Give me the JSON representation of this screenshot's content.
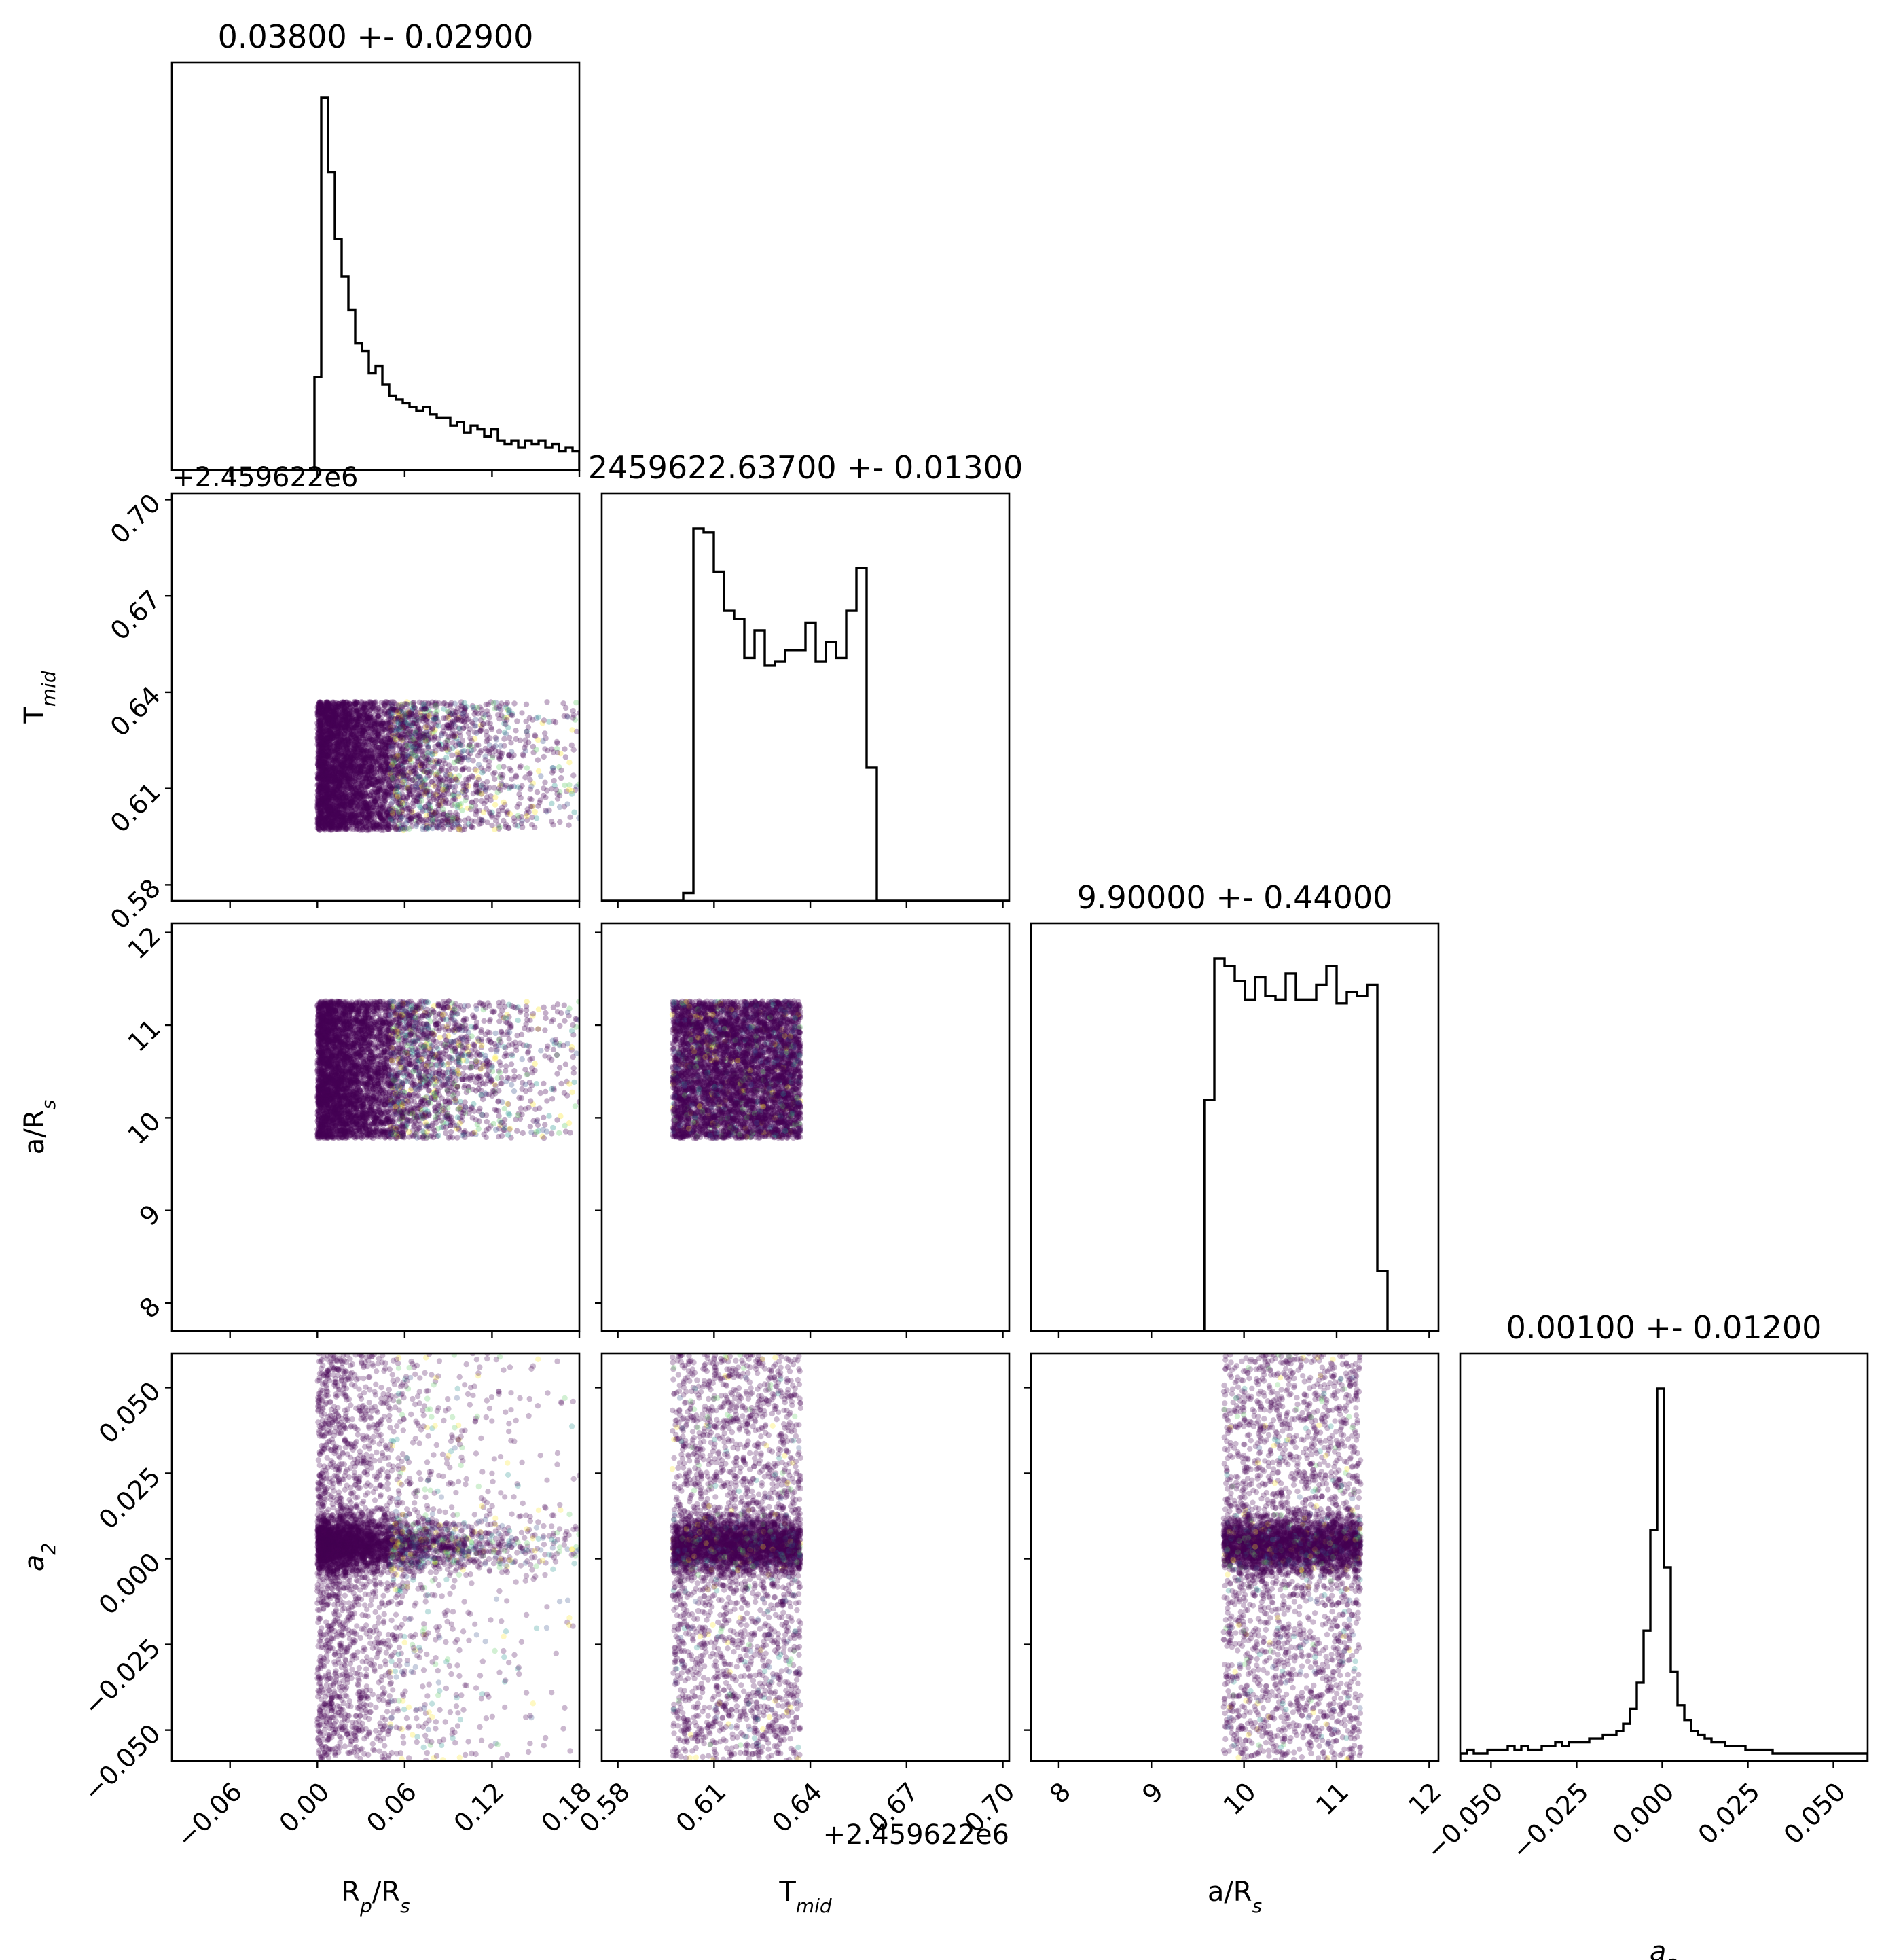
{
  "chart_data": {
    "type": "scatter",
    "subtype": "corner-plot",
    "parameters": [
      {
        "key": "rp",
        "label": "R",
        "label_sub": "p",
        "label_tail": "/R",
        "label_tail_sub": "s",
        "title": "0.03800 +- 0.02900",
        "offset_text": "",
        "range": [
          -0.1,
          0.18
        ],
        "ticks": [
          -0.06,
          0.0,
          0.06,
          0.12,
          0.18
        ],
        "tick_labels": [
          "−0.06",
          "0.00",
          "0.06",
          "0.12",
          "0.18"
        ]
      },
      {
        "key": "tmid",
        "label": "T",
        "label_sub": "mid",
        "label_tail": "",
        "label_tail_sub": "",
        "title": "2459622.63700 +- 0.01300",
        "offset_text": "+2.459622e6",
        "range": [
          0.575,
          0.702
        ],
        "ticks": [
          0.58,
          0.61,
          0.64,
          0.67,
          0.7
        ],
        "tick_labels": [
          "0.58",
          "0.61",
          "0.64",
          "0.67",
          "0.70"
        ]
      },
      {
        "key": "ars",
        "label": "a/R",
        "label_sub": "s",
        "label_tail": "",
        "label_tail_sub": "",
        "title": "9.90000 +- 0.44000",
        "offset_text": "",
        "range": [
          7.7,
          12.1
        ],
        "ticks": [
          8,
          9,
          10,
          11,
          12
        ],
        "tick_labels": [
          "8",
          "9",
          "10",
          "11",
          "12"
        ]
      },
      {
        "key": "a2",
        "label": "a",
        "label_sub": "2",
        "label_tail": "",
        "label_tail_sub": "",
        "label_italic": true,
        "title": "0.00100 +- 0.01200",
        "offset_text": "",
        "range": [
          -0.059,
          0.06
        ],
        "ticks": [
          -0.05,
          -0.025,
          0.0,
          0.025,
          0.05
        ],
        "tick_labels": [
          "−0.050",
          "−0.025",
          "0.000",
          "0.025",
          "0.050"
        ]
      }
    ],
    "corner_offset_text": "+2.459622e6",
    "histograms": {
      "rp": {
        "bin_edges_range": [
          -0.1,
          0.18
        ],
        "bins": 60,
        "heights": [
          0,
          0,
          0,
          0,
          0,
          0,
          0,
          0,
          0,
          0,
          0,
          0,
          0,
          0,
          0,
          0,
          0,
          0,
          0,
          0,
          0,
          0.25,
          1.0,
          0.8,
          0.62,
          0.52,
          0.43,
          0.34,
          0.32,
          0.26,
          0.28,
          0.23,
          0.2,
          0.19,
          0.18,
          0.17,
          0.16,
          0.17,
          0.15,
          0.14,
          0.14,
          0.12,
          0.13,
          0.1,
          0.12,
          0.11,
          0.09,
          0.11,
          0.08,
          0.07,
          0.08,
          0.06,
          0.08,
          0.07,
          0.08,
          0.06,
          0.07,
          0.05,
          0.06,
          0.05
        ]
      },
      "tmid": {
        "bin_edges_range": [
          0.575,
          0.702
        ],
        "bins": 40,
        "heights": [
          0,
          0,
          0,
          0,
          0,
          0,
          0,
          0,
          0.02,
          0.95,
          0.94,
          0.84,
          0.74,
          0.72,
          0.62,
          0.69,
          0.6,
          0.61,
          0.64,
          0.64,
          0.71,
          0.61,
          0.66,
          0.62,
          0.74,
          0.85,
          0.34,
          0,
          0,
          0,
          0,
          0,
          0,
          0,
          0,
          0,
          0,
          0,
          0,
          0
        ]
      },
      "ars": {
        "bin_edges_range": [
          7.7,
          12.1
        ],
        "bins": 40,
        "heights": [
          0,
          0,
          0,
          0,
          0,
          0,
          0,
          0,
          0,
          0,
          0,
          0,
          0,
          0,
          0,
          0,
          0,
          0.62,
          1.0,
          0.98,
          0.94,
          0.89,
          0.95,
          0.9,
          0.89,
          0.96,
          0.89,
          0.89,
          0.93,
          0.98,
          0.88,
          0.91,
          0.9,
          0.93,
          0.16,
          0,
          0,
          0,
          0,
          0
        ]
      },
      "a2": {
        "bin_edges_range": [
          -0.059,
          0.06
        ],
        "bins": 60,
        "heights": [
          0.02,
          0.03,
          0.02,
          0.02,
          0.03,
          0.03,
          0.03,
          0.04,
          0.03,
          0.04,
          0.03,
          0.03,
          0.04,
          0.04,
          0.05,
          0.04,
          0.05,
          0.05,
          0.05,
          0.06,
          0.06,
          0.07,
          0.07,
          0.08,
          0.1,
          0.14,
          0.21,
          0.35,
          0.62,
          1.0,
          0.52,
          0.24,
          0.15,
          0.11,
          0.08,
          0.07,
          0.06,
          0.05,
          0.05,
          0.04,
          0.04,
          0.04,
          0.03,
          0.03,
          0.03,
          0.03,
          0.02,
          0.02,
          0.02,
          0.02,
          0.02,
          0.02,
          0.02,
          0.02,
          0.02,
          0.02,
          0.02,
          0.02,
          0.02,
          0.02
        ]
      }
    },
    "samples": {
      "rp_decay_scale": 0.045,
      "rp_min": 0.0,
      "rp_max": 0.18,
      "tmid_range": [
        0.597,
        0.637
      ],
      "ars_range": [
        9.78,
        11.26
      ],
      "a2_core_center": 0.004,
      "a2_core_sd": 0.004,
      "a2_core_fraction": 0.55,
      "a2_tail_range": [
        -0.059,
        0.06
      ],
      "n_points": 5000
    },
    "point_color_main": "#440154",
    "point_colormap": [
      "#440154",
      "#3b528b",
      "#21918c",
      "#5ec962",
      "#fde725"
    ],
    "hist_color": "#000000",
    "grid": false,
    "legend": "none"
  }
}
